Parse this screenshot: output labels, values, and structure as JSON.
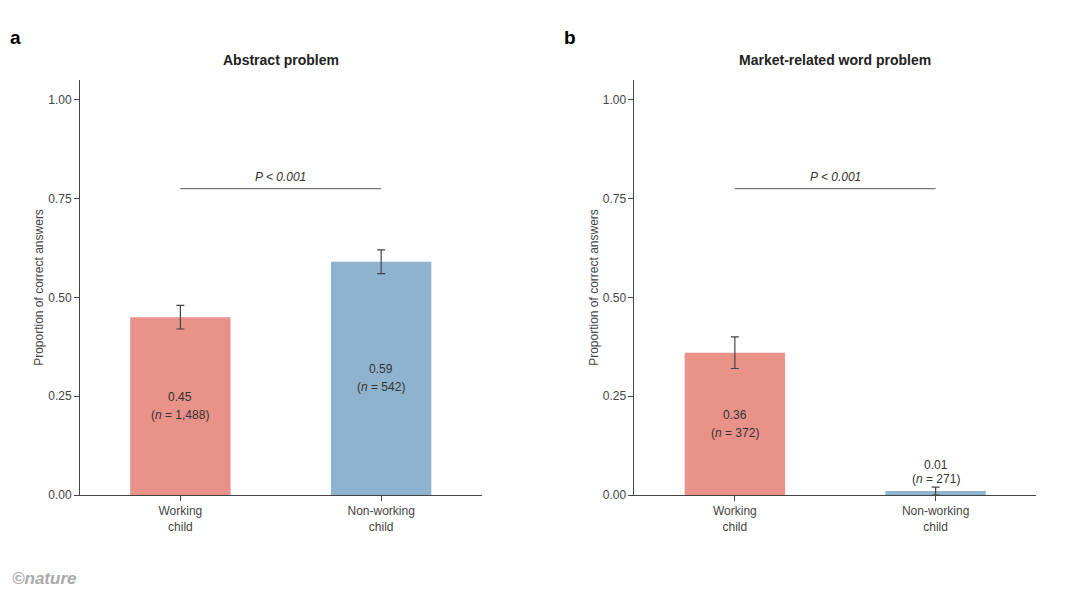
{
  "chart_data": [
    {
      "type": "bar",
      "title": "Abstract problem",
      "categories": [
        "Working\nchild",
        "Non-working\nchild"
      ],
      "values": [
        0.45,
        0.59
      ],
      "errors": [
        0.03,
        0.03
      ],
      "colors": [
        "#E8928A",
        "#8FB3CE"
      ],
      "data_labels": true,
      "n_labels": [
        "(n = 1,488)",
        "(n = 542)"
      ],
      "annotations": [
        {
          "text": "a"
        },
        {
          "text": "P < 0.001",
          "y": 0.775
        }
      ],
      "ylabel": "Proportion of correct answers",
      "ylim": [
        0,
        1.05
      ],
      "yticks": [
        {
          "value": 0,
          "label": "0.00"
        },
        {
          "value": 0.25,
          "label": "0.25"
        },
        {
          "value": 0.5,
          "label": "0.50"
        },
        {
          "value": 0.75,
          "label": "0.75"
        },
        {
          "value": 1,
          "label": "1.00"
        }
      ],
      "grid": false
    },
    {
      "type": "bar",
      "title": "Market-related word problem",
      "categories": [
        "Working\nchild",
        "Non-working\nchild"
      ],
      "values": [
        0.36,
        0.01
      ],
      "errors": [
        0.04,
        0.01
      ],
      "colors": [
        "#E8928A",
        "#8FB3CE"
      ],
      "data_labels": true,
      "n_labels": [
        "(n = 372)",
        "(n = 271)"
      ],
      "annotations": [
        {
          "text": "b"
        },
        {
          "text": "P < 0.001",
          "y": 0.775
        }
      ],
      "ylabel": "Proportion of correct answers",
      "ylim": [
        0,
        1.05
      ],
      "yticks": [
        {
          "value": 0,
          "label": "0.00"
        },
        {
          "value": 0.25,
          "label": "0.25"
        },
        {
          "value": 0.5,
          "label": "0.50"
        },
        {
          "value": 0.75,
          "label": "0.75"
        },
        {
          "value": 1,
          "label": "1.00"
        }
      ],
      "grid": false
    }
  ],
  "annotations": [
    {
      "text": "©nature",
      "color": "#AAAAAA"
    }
  ]
}
